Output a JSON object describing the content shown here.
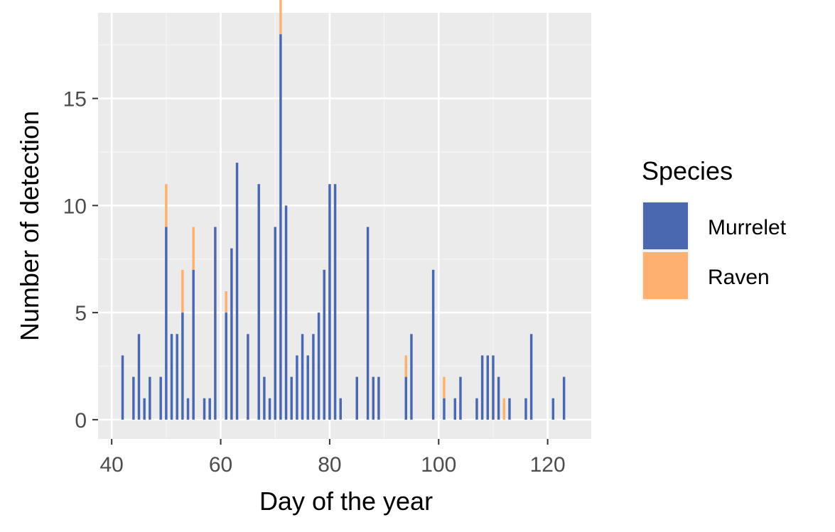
{
  "colors": {
    "panel_background": "#ebebeb",
    "grid_major": "#ffffff",
    "grid_minor": "#f5f5f5",
    "axis_text": "#4d4d4d",
    "tick": "#333333"
  },
  "chart_data": {
    "type": "bar",
    "title": "",
    "xlabel": "Day of the year",
    "ylabel": "Number of detection",
    "xlim": [
      37.5,
      128
    ],
    "ylim": [
      -0.9,
      19
    ],
    "x_ticks": [
      40,
      60,
      80,
      100,
      120
    ],
    "y_ticks": [
      0,
      5,
      10,
      15
    ],
    "grid": true,
    "legend": {
      "title": "Species",
      "position": "right"
    },
    "series": [
      {
        "name": "Murrelet",
        "color": "#4a68b0",
        "points": [
          [
            42,
            3
          ],
          [
            44,
            2
          ],
          [
            45,
            4
          ],
          [
            46,
            1
          ],
          [
            47,
            2
          ],
          [
            49,
            2
          ],
          [
            50,
            9
          ],
          [
            51,
            4
          ],
          [
            52,
            4
          ],
          [
            53,
            5
          ],
          [
            54,
            1
          ],
          [
            55,
            7
          ],
          [
            57,
            1
          ],
          [
            58,
            1
          ],
          [
            59,
            9
          ],
          [
            61,
            5
          ],
          [
            62,
            8
          ],
          [
            63,
            12
          ],
          [
            65,
            4
          ],
          [
            67,
            11
          ],
          [
            68,
            2
          ],
          [
            69,
            1
          ],
          [
            70,
            9
          ],
          [
            71,
            18
          ],
          [
            72,
            10
          ],
          [
            73,
            2
          ],
          [
            74,
            3
          ],
          [
            75,
            4
          ],
          [
            76,
            3
          ],
          [
            77,
            4
          ],
          [
            78,
            5
          ],
          [
            79,
            7
          ],
          [
            80,
            11
          ],
          [
            81,
            11
          ],
          [
            82,
            1
          ],
          [
            85,
            2
          ],
          [
            87,
            9
          ],
          [
            88,
            2
          ],
          [
            89,
            2
          ],
          [
            94,
            2
          ],
          [
            95,
            4
          ],
          [
            99,
            7
          ],
          [
            101,
            1
          ],
          [
            103,
            1
          ],
          [
            104,
            2
          ],
          [
            107,
            1
          ],
          [
            108,
            3
          ],
          [
            109,
            3
          ],
          [
            110,
            3
          ],
          [
            111,
            2
          ],
          [
            113,
            1
          ],
          [
            116,
            1
          ],
          [
            117,
            4
          ],
          [
            121,
            1
          ],
          [
            123,
            2
          ]
        ]
      },
      {
        "name": "Raven",
        "color": "#fdb06f",
        "points": [
          [
            50,
            2
          ],
          [
            53,
            2
          ],
          [
            55,
            2
          ],
          [
            61,
            1
          ],
          [
            71,
            2
          ],
          [
            94,
            1
          ],
          [
            101,
            1
          ],
          [
            112,
            1
          ]
        ]
      }
    ]
  }
}
